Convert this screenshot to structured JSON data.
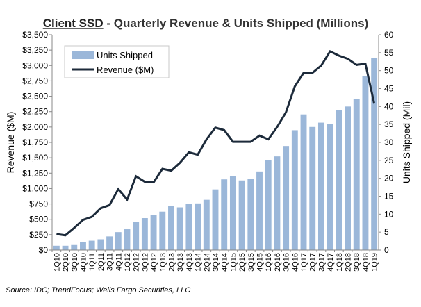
{
  "chart_data": {
    "type": "bar",
    "title_main": "Client SSD",
    "title_rest": " - Quarterly Revenue & Units Shipped (Millions)",
    "ylabel_left": "Revenue ($M)",
    "ylabel_right": "Units Shipped (Mil)",
    "source": "Source: IDC; TrendFocus; Wells Fargo Securities, LLC",
    "ylim_left": [
      0,
      3500
    ],
    "ylim_right": [
      0,
      60
    ],
    "yticks_left": [
      "$0",
      "$250",
      "$500",
      "$750",
      "$1,000",
      "$1,250",
      "$1,500",
      "$1,750",
      "$2,000",
      "$2,250",
      "$2,500",
      "$2,750",
      "$3,000",
      "$3,250",
      "$3,500"
    ],
    "yticks_right": [
      "0",
      "5",
      "10",
      "15",
      "20",
      "25",
      "30",
      "35",
      "40",
      "45",
      "50",
      "55",
      "60"
    ],
    "categories": [
      "1Q10",
      "2Q10",
      "3Q10",
      "4Q10",
      "1Q11",
      "2Q11",
      "3Q11",
      "4Q11",
      "1Q12",
      "2Q12",
      "3Q12",
      "4Q12",
      "1Q13",
      "2Q13",
      "3Q13",
      "4Q13",
      "1Q14",
      "2Q14",
      "3Q14",
      "4Q14",
      "1Q15",
      "2Q15",
      "3Q15",
      "4Q15",
      "1Q16",
      "2Q16",
      "3Q16",
      "4Q16",
      "1Q17",
      "2Q17",
      "3Q17",
      "4Q17",
      "1Q18",
      "2Q18",
      "3Q18",
      "4Q18",
      "1Q19"
    ],
    "legend": {
      "position": "top-left",
      "entries": [
        "Units Shipped",
        "Revenue ($M)"
      ]
    },
    "series": [
      {
        "name": "Units Shipped",
        "type": "bar",
        "axis": "right",
        "color": "#9bb7d9",
        "values": [
          1.2,
          1.2,
          1.4,
          2.2,
          2.6,
          3.0,
          3.8,
          5.0,
          5.8,
          7.8,
          8.9,
          9.7,
          10.7,
          12.2,
          11.9,
          12.9,
          13.0,
          14.0,
          16.9,
          19.7,
          20.6,
          19.4,
          19.9,
          21.9,
          25.0,
          26.1,
          29.0,
          33.4,
          37.8,
          34.3,
          35.5,
          35.2,
          39.0,
          40.0,
          42.0,
          48.5,
          53.5
        ]
      },
      {
        "name": "Revenue ($M)",
        "type": "line",
        "axis": "left",
        "color": "#1c2a3a",
        "values": [
          260,
          240,
          360,
          490,
          540,
          680,
          730,
          990,
          820,
          1200,
          1110,
          1100,
          1320,
          1290,
          1420,
          1590,
          1550,
          1800,
          1990,
          1950,
          1760,
          1760,
          1760,
          1860,
          1800,
          2000,
          2240,
          2660,
          2880,
          2880,
          3000,
          3230,
          3160,
          3110,
          3010,
          3030,
          2380
        ]
      }
    ],
    "grid": false
  }
}
